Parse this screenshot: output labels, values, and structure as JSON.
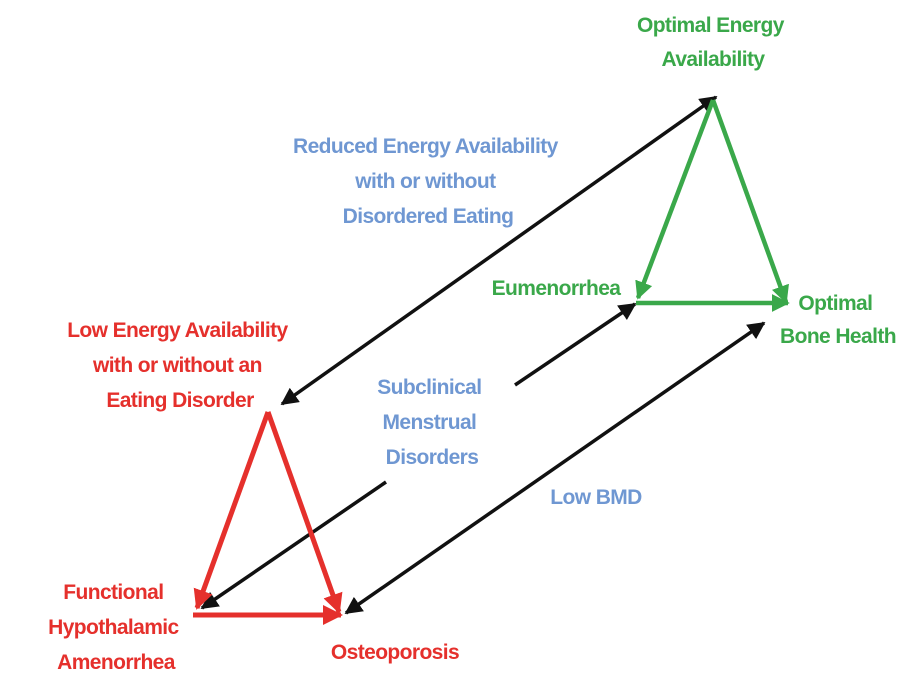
{
  "nodes": [
    {
      "label": [
        "Optimal Energy",
        "Availability"
      ]
    },
    {
      "label": [
        "Eumenorrhea"
      ]
    },
    {
      "label": [
        "Optimal",
        "Bone Health"
      ]
    },
    {
      "label": [
        "Low Energy Availability",
        "with or without an",
        "Eating Disorder"
      ]
    },
    {
      "label": [
        "Functional",
        "Hypothalamic",
        "Amenorrhea"
      ]
    },
    {
      "label": [
        "Osteoporosis"
      ]
    }
  ],
  "spectra": [
    {
      "label": [
        "Reduced Energy Availability",
        "with or without",
        "Disordered Eating"
      ]
    },
    {
      "label": [
        "Subclinical",
        "Menstrual",
        "Disorders"
      ]
    },
    {
      "label": [
        "Low BMD"
      ]
    }
  ]
}
